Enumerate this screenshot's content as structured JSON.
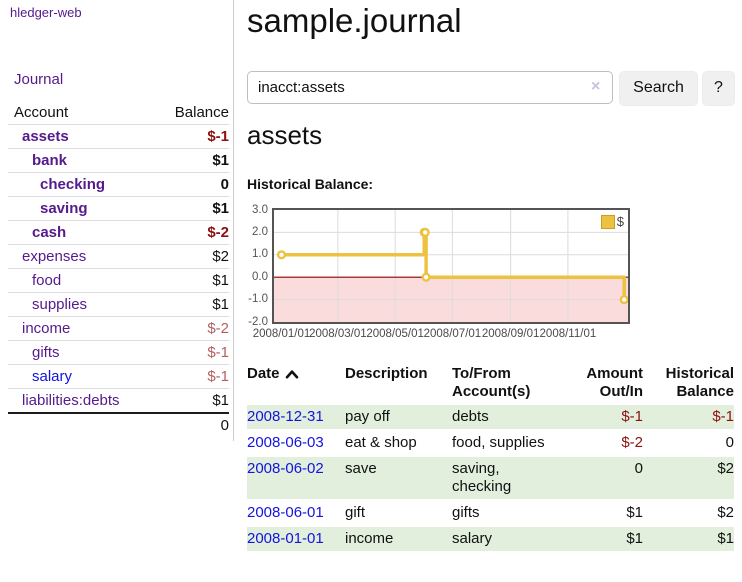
{
  "app": {
    "brand": "hledger-web"
  },
  "sidebar": {
    "nav": {
      "journal": "Journal"
    },
    "accounts": {
      "headers": {
        "account": "Account",
        "balance": "Balance"
      },
      "rows": [
        {
          "name": "assets",
          "balance": "$-1"
        },
        {
          "name": "bank",
          "balance": "$1"
        },
        {
          "name": "checking",
          "balance": "0"
        },
        {
          "name": "saving",
          "balance": "$1"
        },
        {
          "name": "cash",
          "balance": "$-2"
        },
        {
          "name": "expenses",
          "balance": "$2"
        },
        {
          "name": "food",
          "balance": "$1"
        },
        {
          "name": "supplies",
          "balance": "$1"
        },
        {
          "name": "income",
          "balance": "$-2"
        },
        {
          "name": "gifts",
          "balance": "$-1"
        },
        {
          "name": "salary",
          "balance": "$-1"
        },
        {
          "name": "liabilities:debts",
          "balance": "$1"
        }
      ],
      "total": "0"
    }
  },
  "header": {
    "title": "sample.journal"
  },
  "search": {
    "value": "inacct:assets",
    "clear_icon": "×",
    "search_button": "Search",
    "help_button": "?"
  },
  "account_page": {
    "title": "assets",
    "chart_heading": "Historical Balance:"
  },
  "chart_data": {
    "type": "line",
    "step": true,
    "series": [
      {
        "name": "$",
        "color": "#edc240",
        "points": [
          [
            "2008-01-01",
            1
          ],
          [
            "2008-06-01",
            2
          ],
          [
            "2008-06-02",
            2
          ],
          [
            "2008-06-03",
            0
          ],
          [
            "2008-12-31",
            -1
          ]
        ]
      }
    ],
    "x_ticks": [
      "2008/01/01",
      "2008/03/01",
      "2008/05/01",
      "2008/07/01",
      "2008/09/01",
      "2008/11/01"
    ],
    "y_ticks": [
      3.0,
      2.0,
      1.0,
      0.0,
      -1.0,
      -2.0
    ],
    "ylim": [
      -2,
      3
    ],
    "xlim": [
      "2007-12-24",
      "2009-01-04"
    ],
    "grid": true,
    "legend_position": "top-right",
    "zero_line_color": "#8b0000",
    "negative_region_color": "#fbdcdc"
  },
  "register": {
    "headers": {
      "date": "Date",
      "description": "Description",
      "accounts": "To/From Account(s)",
      "amount": "Amount Out/In",
      "balance": "Historical Balance"
    },
    "rows": [
      {
        "date": "2008-12-31",
        "description": "pay off",
        "accounts": "debts",
        "amount": "$-1",
        "balance": "$-1"
      },
      {
        "date": "2008-06-03",
        "description": "eat & shop",
        "accounts": "food, supplies",
        "amount": "$-2",
        "balance": "0"
      },
      {
        "date": "2008-06-02",
        "description": "save",
        "accounts": "saving, checking",
        "amount": "0",
        "balance": "$2"
      },
      {
        "date": "2008-06-01",
        "description": "gift",
        "accounts": "gifts",
        "amount": "$1",
        "balance": "$2"
      },
      {
        "date": "2008-01-01",
        "description": "income",
        "accounts": "salary",
        "amount": "$1",
        "balance": "$1"
      }
    ]
  },
  "colors": {
    "link_purple": "#551a8b",
    "link_blue": "#1414dd",
    "negative_strong": "#8b1111",
    "negative_muted": "#b25f5f",
    "row_highlight": "#e1efdc",
    "series_yellow": "#edc240",
    "chart_border": "#545454"
  }
}
